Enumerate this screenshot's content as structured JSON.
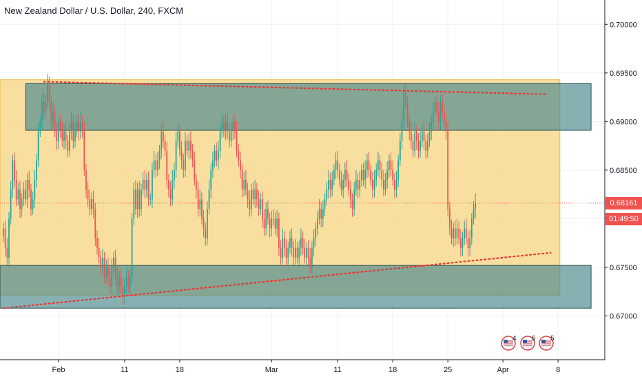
{
  "header": {
    "title": "New Zealand Dollar / U.S. Dollar, 240, FXCM"
  },
  "colors": {
    "up": "#26a69a",
    "down": "#ef5350",
    "range_fill": "#f7d27a",
    "zone_fill": "#4e8b8f",
    "trendline": "#e53935",
    "price_line": "#ef5350"
  },
  "chart_data": {
    "type": "candlestick",
    "y_range": [
      0.6655,
      0.7025
    ],
    "y_ticks": [
      "0.70000",
      "0.69500",
      "0.69000",
      "0.68500",
      "0.68000",
      "0.67500",
      "0.67000"
    ],
    "y_tick_values": [
      0.7,
      0.695,
      0.69,
      0.685,
      0.68,
      0.675,
      0.67
    ],
    "x_ticks": [
      {
        "label": "Feb",
        "bar": 30
      },
      {
        "label": "11",
        "bar": 66
      },
      {
        "label": "18",
        "bar": 96
      },
      {
        "label": "Mar",
        "bar": 146
      },
      {
        "label": "11",
        "bar": 182
      },
      {
        "label": "18",
        "bar": 212
      },
      {
        "label": "25",
        "bar": 242
      },
      {
        "label": "Apr",
        "bar": 272
      },
      {
        "label": "8",
        "bar": 302
      }
    ],
    "current_price": "0.68161",
    "current_price_value": 0.68161,
    "countdown": "01:49:50",
    "closes": [
      0.679,
      0.677,
      0.676,
      0.68,
      0.683,
      0.686,
      0.684,
      0.682,
      0.683,
      0.681,
      0.682,
      0.683,
      0.682,
      0.684,
      0.683,
      0.681,
      0.682,
      0.684,
      0.686,
      0.689,
      0.69,
      0.692,
      0.691,
      0.692,
      0.694,
      0.692,
      0.69,
      0.691,
      0.689,
      0.688,
      0.69,
      0.689,
      0.688,
      0.689,
      0.688,
      0.687,
      0.689,
      0.69,
      0.688,
      0.689,
      0.69,
      0.689,
      0.69,
      0.689,
      0.685,
      0.683,
      0.682,
      0.681,
      0.682,
      0.681,
      0.678,
      0.677,
      0.676,
      0.675,
      0.676,
      0.674,
      0.675,
      0.674,
      0.673,
      0.675,
      0.676,
      0.674,
      0.673,
      0.674,
      0.673,
      0.672,
      0.673,
      0.674,
      0.673,
      0.674,
      0.68,
      0.683,
      0.681,
      0.683,
      0.681,
      0.683,
      0.684,
      0.683,
      0.684,
      0.682,
      0.682,
      0.685,
      0.686,
      0.685,
      0.686,
      0.687,
      0.689,
      0.688,
      0.687,
      0.684,
      0.683,
      0.682,
      0.684,
      0.685,
      0.688,
      0.689,
      0.687,
      0.686,
      0.685,
      0.688,
      0.687,
      0.688,
      0.687,
      0.686,
      0.684,
      0.683,
      0.681,
      0.682,
      0.68,
      0.679,
      0.678,
      0.681,
      0.683,
      0.685,
      0.686,
      0.687,
      0.686,
      0.687,
      0.689,
      0.69,
      0.689,
      0.69,
      0.689,
      0.688,
      0.689,
      0.69,
      0.689,
      0.687,
      0.686,
      0.685,
      0.683,
      0.684,
      0.683,
      0.682,
      0.681,
      0.683,
      0.682,
      0.683,
      0.682,
      0.681,
      0.682,
      0.68,
      0.679,
      0.681,
      0.68,
      0.679,
      0.68,
      0.68,
      0.679,
      0.68,
      0.677,
      0.676,
      0.678,
      0.677,
      0.676,
      0.677,
      0.678,
      0.677,
      0.676,
      0.677,
      0.676,
      0.677,
      0.678,
      0.677,
      0.676,
      0.677,
      0.676,
      0.675,
      0.677,
      0.678,
      0.679,
      0.68,
      0.681,
      0.68,
      0.681,
      0.682,
      0.683,
      0.684,
      0.683,
      0.684,
      0.685,
      0.686,
      0.685,
      0.684,
      0.683,
      0.684,
      0.685,
      0.684,
      0.683,
      0.682,
      0.681,
      0.683,
      0.684,
      0.683,
      0.684,
      0.685,
      0.684,
      0.685,
      0.686,
      0.685,
      0.684,
      0.683,
      0.684,
      0.685,
      0.686,
      0.685,
      0.684,
      0.683,
      0.684,
      0.685,
      0.686,
      0.685,
      0.684,
      0.683,
      0.684,
      0.686,
      0.688,
      0.69,
      0.693,
      0.692,
      0.69,
      0.689,
      0.688,
      0.687,
      0.689,
      0.688,
      0.687,
      0.688,
      0.689,
      0.688,
      0.687,
      0.688,
      0.689,
      0.69,
      0.691,
      0.692,
      0.691,
      0.69,
      0.692,
      0.691,
      0.69,
      0.689,
      0.681,
      0.679,
      0.678,
      0.679,
      0.678,
      0.679,
      0.678,
      0.677,
      0.678,
      0.679,
      0.678,
      0.677,
      0.678,
      0.68,
      0.681,
      0.6816
    ],
    "annotations": {
      "range_box": {
        "bar_start": 0,
        "bar_end": 303,
        "top": 0.6943,
        "bottom": 0.6721
      },
      "upper_zone": {
        "bar_start": 14,
        "bar_end": 320,
        "top": 0.6939,
        "bottom": 0.6891
      },
      "lower_zone": {
        "bar_start": 0,
        "bar_end": 320,
        "top": 0.6752,
        "bottom": 0.6708
      },
      "upper_trendline": {
        "bar_start": 22,
        "bar_end": 296,
        "value_start": 0.6941,
        "value_end": 0.6928
      },
      "lower_trendline": {
        "bar_start": 0,
        "bar_end": 298,
        "value_start": 0.6708,
        "value_end": 0.6765
      }
    }
  },
  "events": [
    {
      "icon": "us-flag-event-icon",
      "count": "4"
    },
    {
      "icon": "us-flag-event-icon",
      "count": "6"
    },
    {
      "icon": "us-flag-event-icon",
      "count": "5"
    }
  ]
}
